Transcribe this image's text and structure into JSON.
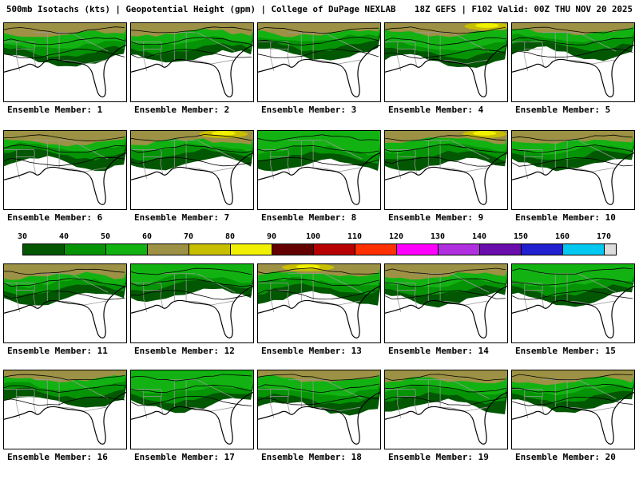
{
  "header": {
    "left": "500mb Isotachs (kts) | Geopotential Height (gpm) | College of DuPage NEXLAB",
    "right": "18Z GEFS | F102 Valid: 00Z THU NOV 20 2025"
  },
  "colorbar": {
    "units": "kts",
    "ticks": [
      "30",
      "40",
      "50",
      "60",
      "70",
      "80",
      "90",
      "100",
      "110",
      "120",
      "130",
      "140",
      "150",
      "160",
      "170"
    ],
    "segment_colors": [
      "#025702",
      "#059405",
      "#12B212",
      "#9C9144",
      "#C8BE00",
      "#F0F000",
      "#640000",
      "#B80000",
      "#FF3000",
      "#FF00FF",
      "#B030E0",
      "#6A0DAD",
      "#2020D0",
      "#00C8F0"
    ],
    "overflow_color": "#DCDCDC"
  },
  "members": [
    {
      "id": 1,
      "label": "Ensemble Member: 1",
      "core": "tan"
    },
    {
      "id": 2,
      "label": "Ensemble Member: 2",
      "core": "tan"
    },
    {
      "id": 3,
      "label": "Ensemble Member: 3",
      "core": "tan"
    },
    {
      "id": 4,
      "label": "Ensemble Member: 4",
      "core": "yellow"
    },
    {
      "id": 5,
      "label": "Ensemble Member: 5",
      "core": "tan"
    },
    {
      "id": 6,
      "label": "Ensemble Member: 6",
      "core": "tan"
    },
    {
      "id": 7,
      "label": "Ensemble Member: 7",
      "core": "yellow"
    },
    {
      "id": 8,
      "label": "Ensemble Member: 8",
      "core": "green"
    },
    {
      "id": 9,
      "label": "Ensemble Member: 9",
      "core": "yellow"
    },
    {
      "id": 10,
      "label": "Ensemble Member: 10",
      "core": "tan"
    },
    {
      "id": 11,
      "label": "Ensemble Member: 11",
      "core": "tan"
    },
    {
      "id": 12,
      "label": "Ensemble Member: 12",
      "core": "green"
    },
    {
      "id": 13,
      "label": "Ensemble Member: 13",
      "core": "yellow"
    },
    {
      "id": 14,
      "label": "Ensemble Member: 14",
      "core": "tan"
    },
    {
      "id": 15,
      "label": "Ensemble Member: 15",
      "core": "green"
    },
    {
      "id": 16,
      "label": "Ensemble Member: 16",
      "core": "tan"
    },
    {
      "id": 17,
      "label": "Ensemble Member: 17",
      "core": "green"
    },
    {
      "id": 18,
      "label": "Ensemble Member: 18",
      "core": "tan"
    },
    {
      "id": 19,
      "label": "Ensemble Member: 19",
      "core": "tan"
    },
    {
      "id": 20,
      "label": "Ensemble Member: 20",
      "core": "tan"
    }
  ]
}
